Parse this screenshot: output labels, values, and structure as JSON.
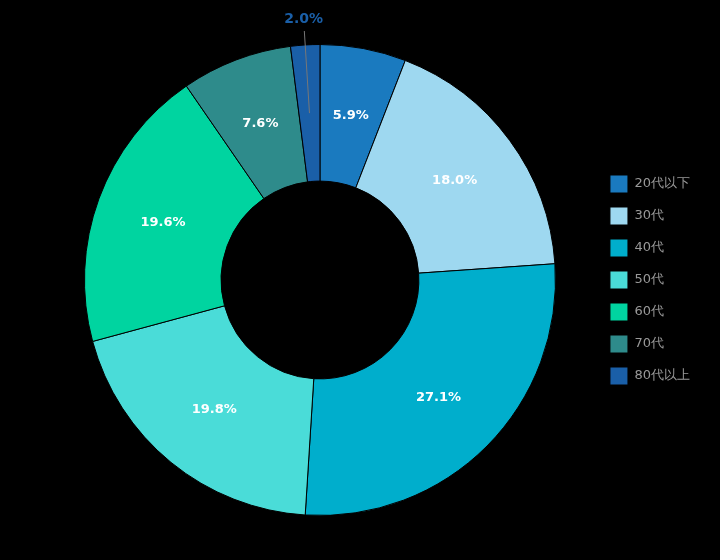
{
  "chart_data": {
    "type": "doughnut",
    "categories": [
      "20代以下",
      "30代",
      "40代",
      "50代",
      "60代",
      "70代",
      "80代以上"
    ],
    "values": [
      5.9,
      18.0,
      27.1,
      19.8,
      19.6,
      7.6,
      2.0
    ],
    "value_labels": [
      "5.9%",
      "18.0%",
      "27.1%",
      "19.8%",
      "19.6%",
      "7.6%",
      "2.0%"
    ],
    "colors": [
      "#1a7abf",
      "#9ed8f0",
      "#00aecc",
      "#4adcd8",
      "#00d4a0",
      "#2e8b8b",
      "#1a5fa8"
    ],
    "data_labels": true,
    "legend": "right"
  }
}
